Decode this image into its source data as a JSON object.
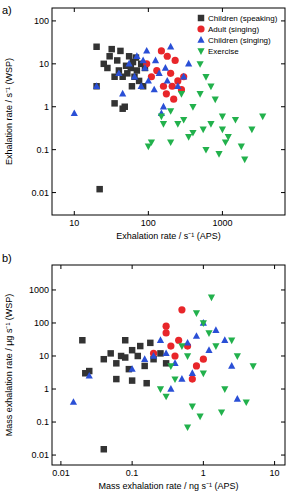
{
  "chart_data": [
    {
      "type": "scatter",
      "title": "a)",
      "log": true,
      "legend": "top-right",
      "x_label": "Exhalation rate / s⁻¹ (APS)",
      "y_label": "Exhalation rate / s⁻¹ (WSP)",
      "xlim": [
        5,
        7000
      ],
      "ylim": [
        0.003,
        200
      ],
      "xticks": [
        10,
        100,
        1000
      ],
      "yticks": [
        0.01,
        0.1,
        1,
        10,
        100
      ],
      "series": [
        {
          "name": "Children (speaking)",
          "color": "#333333",
          "marker": "square",
          "x": [
            20,
            20,
            25,
            28,
            30,
            32,
            35,
            38,
            40,
            42,
            45,
            48,
            50,
            52,
            55,
            58,
            60,
            62,
            65,
            68,
            70,
            75,
            80,
            85,
            90,
            22,
            35,
            45
          ],
          "values": [
            25,
            3,
            10,
            8,
            15,
            22,
            5,
            12,
            7,
            20,
            5,
            1,
            9,
            6,
            15,
            8,
            3,
            11,
            5,
            14,
            7,
            4,
            10,
            3,
            8,
            0.012,
            1.2,
            0.9
          ]
        },
        {
          "name": "Adult (singing)",
          "color": "#e8262a",
          "marker": "circle",
          "x": [
            95,
            110,
            130,
            150,
            160,
            175,
            180,
            200,
            210,
            220,
            230,
            250,
            280,
            300
          ],
          "values": [
            10,
            5,
            7,
            20,
            3,
            2,
            15,
            6,
            3,
            1.5,
            12,
            4,
            2.5,
            5
          ]
        },
        {
          "name": "Children (singing)",
          "color": "#2a4fd6",
          "marker": "triangle",
          "x": [
            10,
            20,
            45,
            55,
            65,
            70,
            80,
            90,
            95,
            100,
            120,
            125,
            140,
            150,
            160,
            170,
            180,
            200,
            250,
            300,
            350,
            40,
            85
          ],
          "values": [
            0.7,
            3,
            2,
            10,
            5,
            15,
            3,
            8,
            20,
            4,
            2.5,
            12,
            6,
            0.7,
            1,
            8,
            4,
            25,
            3,
            5,
            10,
            6,
            12
          ]
        },
        {
          "name": "Exercise",
          "color": "#22b14c",
          "marker": "triangle-down",
          "x": [
            100,
            110,
            150,
            160,
            200,
            200,
            250,
            300,
            350,
            400,
            400,
            500,
            500,
            550,
            600,
            600,
            700,
            800,
            900,
            1000,
            1000,
            1100,
            1200,
            1500,
            1800,
            2000,
            2500,
            3500,
            280,
            700
          ],
          "values": [
            0.12,
            0.15,
            0.6,
            0.4,
            0.8,
            0.15,
            0.4,
            0.5,
            0.2,
            0.25,
            1,
            10,
            2,
            0.3,
            5,
            0.1,
            0.4,
            1.5,
            0.08,
            0.3,
            0.6,
            0.15,
            0.2,
            0.5,
            0.12,
            0.06,
            0.3,
            0.6,
            2,
            3
          ]
        }
      ]
    },
    {
      "type": "scatter",
      "title": "b)",
      "log": true,
      "x_label": "Mass exhalation rate / ng s⁻¹ (APS)",
      "y_label": "Mass exhalation rate / μg s⁻¹ (WSP)",
      "xlim": [
        0.0075,
        14
      ],
      "ylim": [
        0.005,
        5700
      ],
      "xticks": [
        0.01,
        0.1,
        1,
        10
      ],
      "yticks": [
        0.01,
        0.1,
        1,
        10,
        100,
        1000
      ],
      "series": [
        {
          "name": "Children (speaking)",
          "color": "#333333",
          "marker": "square",
          "x": [
            0.02,
            0.022,
            0.025,
            0.04,
            0.05,
            0.06,
            0.07,
            0.08,
            0.09,
            0.1,
            0.12,
            0.13,
            0.15,
            0.16,
            0.18,
            0.2,
            0.25,
            0.3,
            0.04,
            0.06,
            0.1,
            0.08
          ],
          "values": [
            30,
            3,
            3.5,
            8,
            12,
            6,
            10,
            9,
            4,
            15,
            10,
            20,
            5,
            1.5,
            25,
            8,
            12,
            6,
            0.015,
            2,
            1.8,
            30
          ]
        },
        {
          "name": "Adult (singing)",
          "color": "#e8262a",
          "marker": "circle",
          "x": [
            0.2,
            0.3,
            0.35,
            0.4,
            0.45,
            0.5,
            0.6,
            0.8,
            0.7,
            0.3,
            1.0
          ],
          "values": [
            12,
            50,
            20,
            10,
            30,
            250,
            20,
            5,
            2,
            80,
            8
          ]
        },
        {
          "name": "Children (singing)",
          "color": "#2a4fd6",
          "marker": "triangle",
          "x": [
            0.015,
            0.025,
            0.1,
            0.15,
            0.2,
            0.25,
            0.3,
            0.4,
            0.5,
            0.6,
            0.8,
            1,
            1.2,
            1.5,
            2,
            2.5,
            0.35,
            0.7,
            3
          ],
          "values": [
            0.4,
            2.5,
            4,
            8,
            10,
            30,
            12,
            6,
            2,
            25,
            40,
            100,
            15,
            60,
            30,
            5,
            1,
            3,
            0.5
          ]
        },
        {
          "name": "Exercise",
          "color": "#22b14c",
          "marker": "triangle-down",
          "x": [
            0.3,
            0.4,
            0.5,
            0.6,
            0.6,
            0.7,
            0.8,
            1,
            1,
            1.2,
            1.3,
            1.5,
            2,
            2.5,
            3,
            4,
            5,
            0.35,
            0.25,
            1.8,
            0.9
          ],
          "values": [
            0.6,
            2,
            20,
            10,
            0.07,
            0.3,
            200,
            100,
            3,
            50,
            600,
            20,
            1,
            30,
            10,
            0.4,
            5,
            5,
            1,
            0.2,
            0.15
          ]
        }
      ]
    }
  ]
}
